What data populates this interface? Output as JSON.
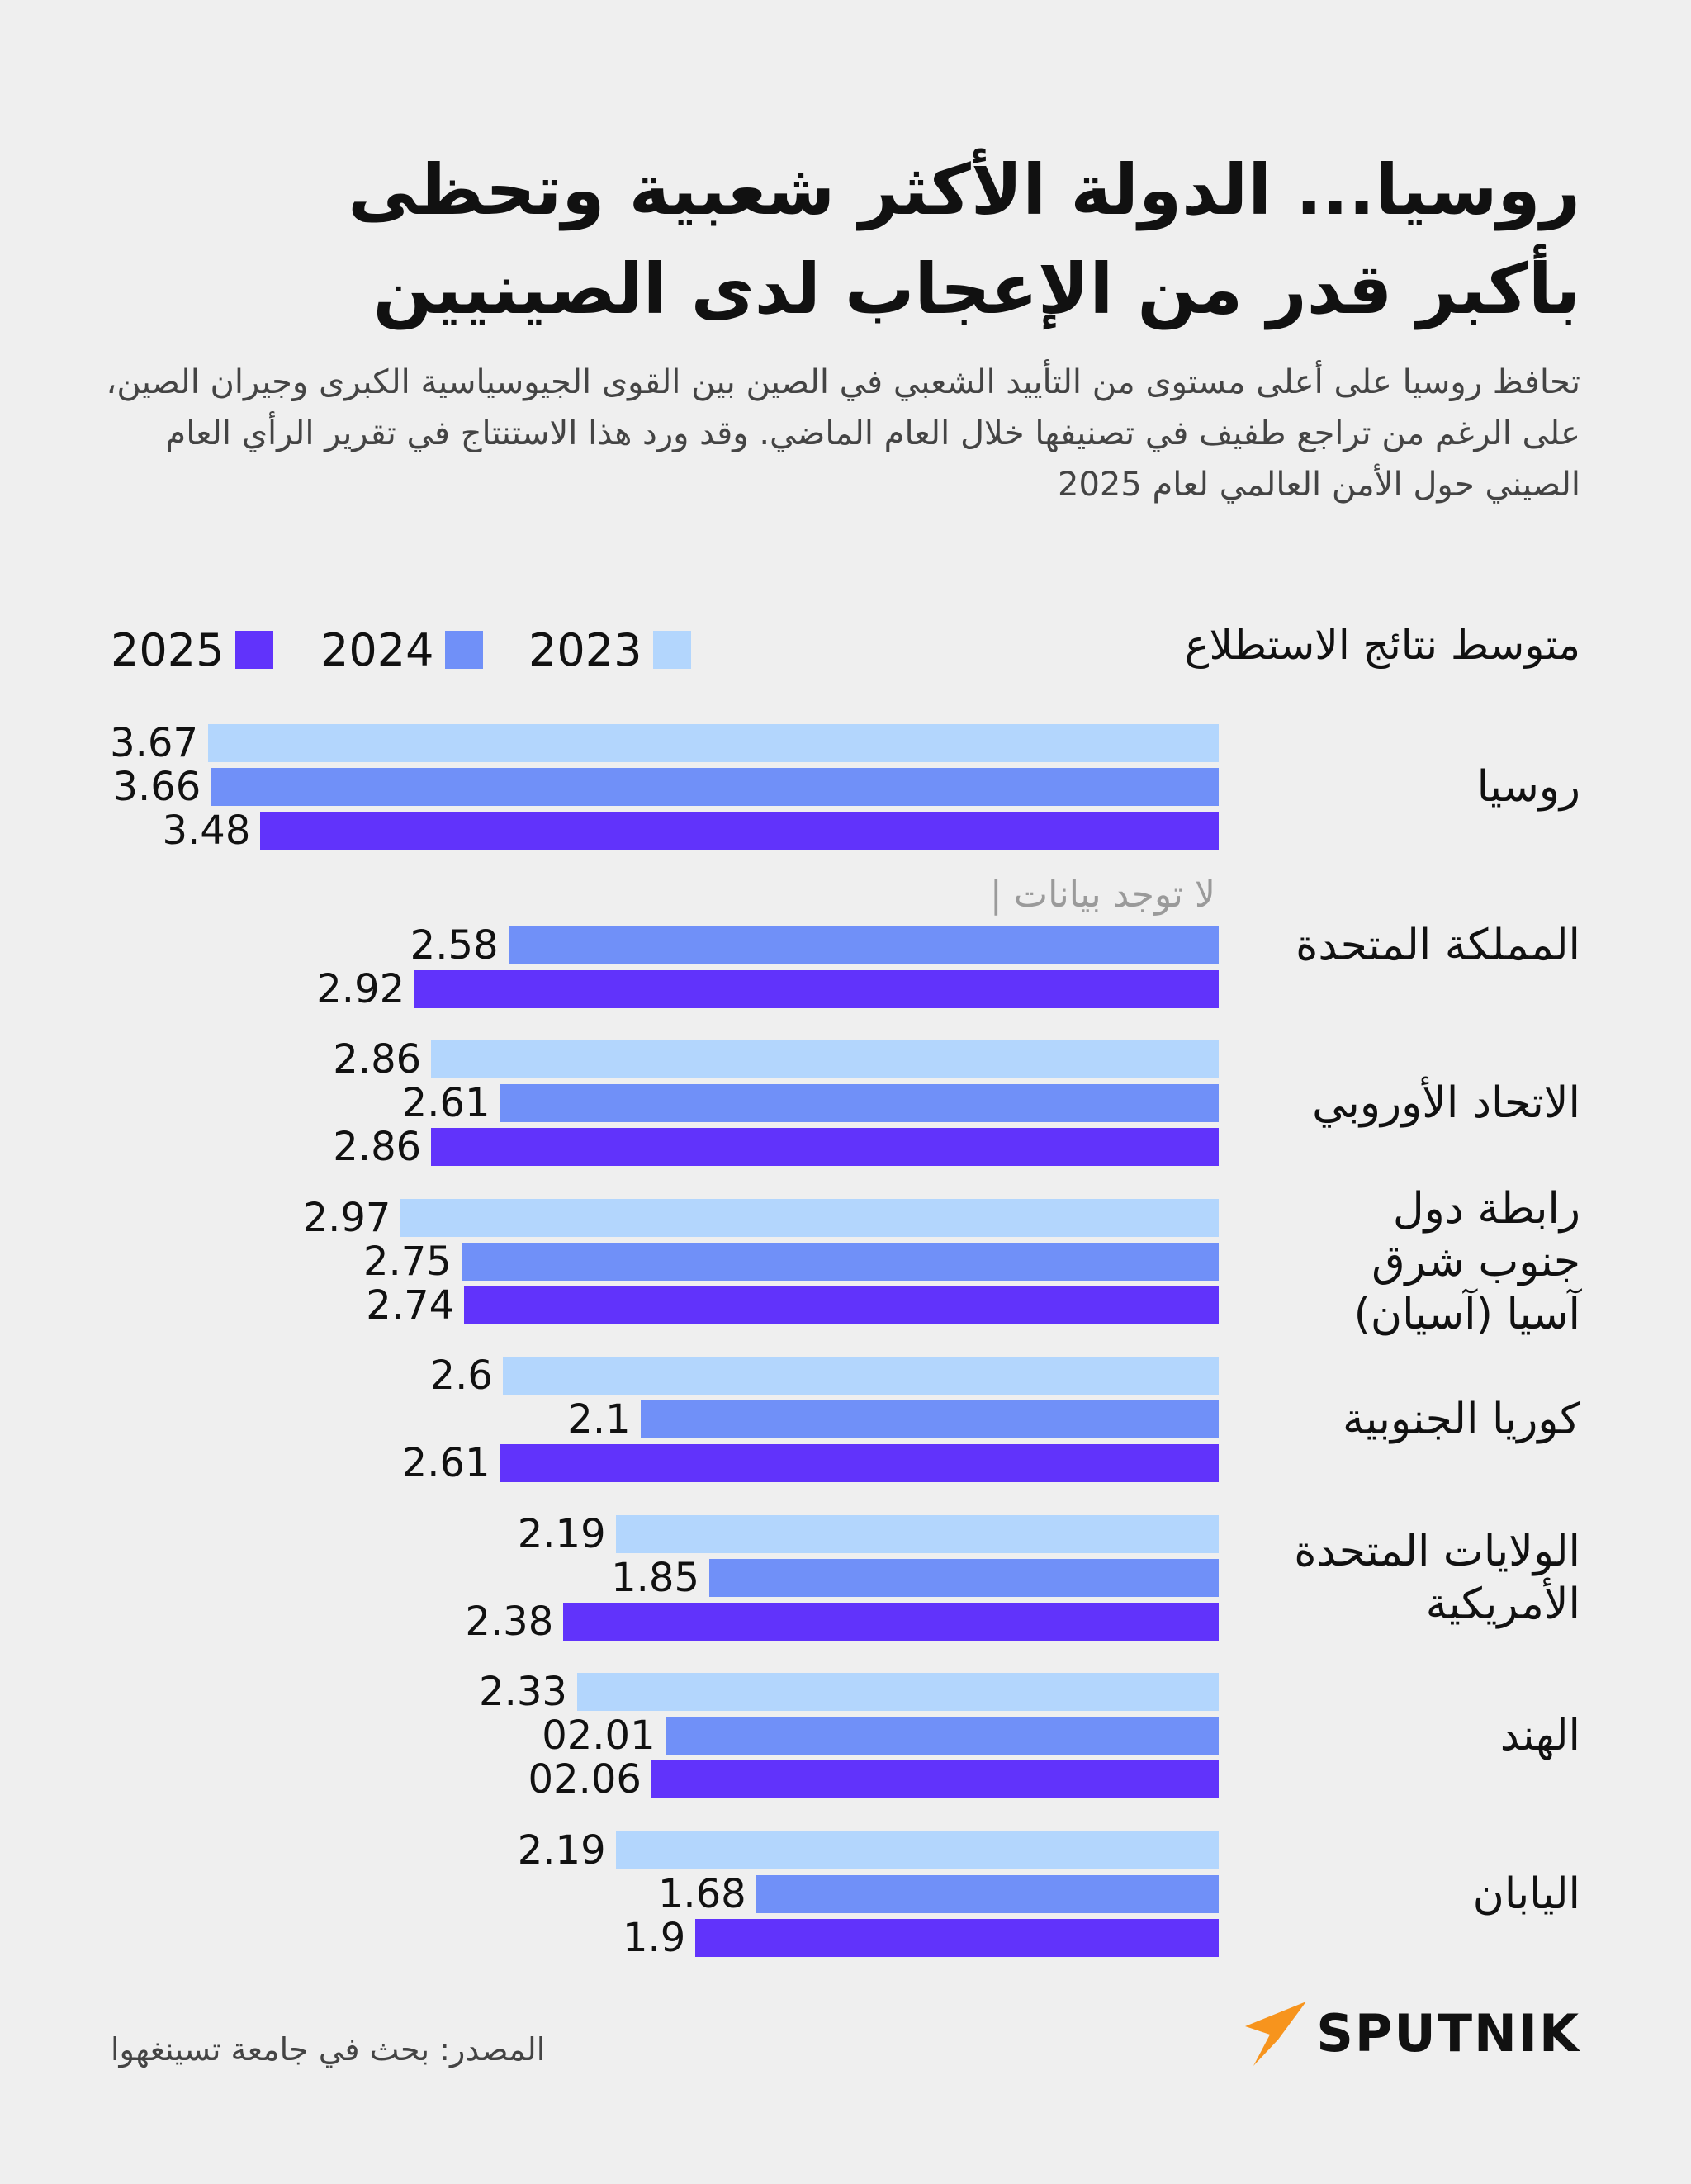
{
  "title_line1": "روسيا... الدولة الأكثر شعبية وتحظى",
  "title_line2": "بأكبر قدر من الإعجاب لدى الصينيين",
  "subtitle": "تحافظ روسيا على أعلى مستوى من التأييد الشعبي في الصين بين القوى الجيوسياسية الكبرى وجيران الصين، على الرغم من تراجع طفيف في تصنيفها خلال العام الماضي. وقد ورد هذا الاستنتاج في تقرير الرأي العام الصيني حول الأمن العالمي لعام 2025",
  "legend_title": "متوسط نتائج الاستطلاع",
  "no_data_label": "لا توجد بيانات |",
  "source": "المصدر: بحث في جامعة تسينغهوا",
  "logo_text": "SPUTNIK",
  "colors": {
    "c2023": "#b3d6fd",
    "c2024": "#7090f8",
    "c2025": "#6133fb",
    "logo_orange": "#f7941d",
    "background": "#efefef"
  },
  "chart_data": {
    "type": "bar",
    "orientation": "horizontal",
    "title": "متوسط نتائج الاستطلاع",
    "xlim": [
      0,
      3.67
    ],
    "series": [
      {
        "name": "2023",
        "color": "#b3d6fd",
        "values": [
          3.67,
          null,
          2.86,
          2.97,
          2.6,
          2.19,
          2.33,
          2.19
        ],
        "labels": [
          "3.67",
          null,
          "2.86",
          "2.97",
          "2.6",
          "2.19",
          "2.33",
          "2.19"
        ]
      },
      {
        "name": "2024",
        "color": "#7090f8",
        "values": [
          3.66,
          2.58,
          2.61,
          2.75,
          2.1,
          1.85,
          2.01,
          1.68
        ],
        "labels": [
          "3.66",
          "2.58",
          "2.61",
          "2.75",
          "2.1",
          "1.85",
          "02.01",
          "1.68"
        ]
      },
      {
        "name": "2025",
        "color": "#6133fb",
        "values": [
          3.48,
          2.92,
          2.86,
          2.74,
          2.61,
          2.38,
          2.06,
          1.9
        ],
        "labels": [
          "3.48",
          "2.92",
          "2.86",
          "2.74",
          "2.61",
          "2.38",
          "02.06",
          "1.9"
        ]
      }
    ],
    "categories": [
      "روسيا",
      "المملكة المتحدة",
      "الاتحاد الأوروبي",
      "رابطة دول جنوب شرق آسيا (آسيان)",
      "كوريا الجنوبية",
      "الولايات المتحدة الأمريكية",
      "الهند",
      "اليابان"
    ],
    "category_lines": [
      [
        "روسيا"
      ],
      [
        "المملكة المتحدة"
      ],
      [
        "الاتحاد الأوروبي"
      ],
      [
        "رابطة دول",
        "جنوب شرق",
        "آسيا (آسيان)"
      ],
      [
        "كوريا الجنوبية"
      ],
      [
        "الولايات المتحدة",
        "الأمريكية"
      ],
      [
        "الهند"
      ],
      [
        "اليابان"
      ]
    ]
  }
}
